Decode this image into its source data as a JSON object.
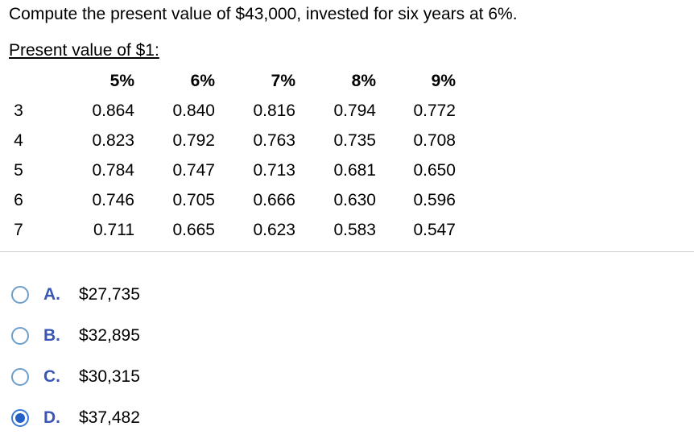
{
  "question": {
    "text": "Compute the present value of $43,000, invested for six years at 6%."
  },
  "pv_table": {
    "title": "Present value of $1:",
    "headers": [
      "",
      "5%",
      "6%",
      "7%",
      "8%",
      "9%"
    ],
    "rows": [
      [
        "3",
        "0.864",
        "0.840",
        "0.816",
        "0.794",
        "0.772"
      ],
      [
        "4",
        "0.823",
        "0.792",
        "0.763",
        "0.735",
        "0.708"
      ],
      [
        "5",
        "0.784",
        "0.747",
        "0.713",
        "0.681",
        "0.650"
      ],
      [
        "6",
        "0.746",
        "0.705",
        "0.666",
        "0.630",
        "0.596"
      ],
      [
        "7",
        "0.711",
        "0.665",
        "0.623",
        "0.583",
        "0.547"
      ]
    ]
  },
  "options": [
    {
      "letter": "A.",
      "text": "$27,735",
      "selected": false
    },
    {
      "letter": "B.",
      "text": "$32,895",
      "selected": false
    },
    {
      "letter": "C.",
      "text": "$30,315",
      "selected": false
    },
    {
      "letter": "D.",
      "text": "$37,482",
      "selected": true
    }
  ],
  "colors": {
    "option_letter": "#3a57b5",
    "radio_border": "#6d9fcb",
    "radio_selected_fill": "#2560c9"
  }
}
